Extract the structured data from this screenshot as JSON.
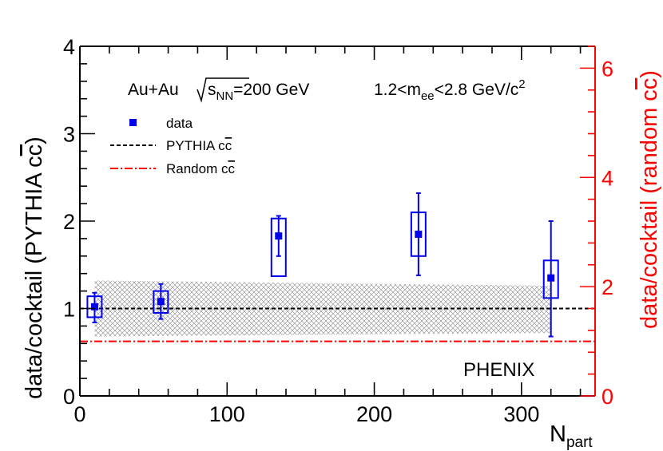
{
  "chart_data": {
    "type": "scatter",
    "title": "",
    "xlabel": "N",
    "xlabel_sub": "part",
    "ylabel": "data/cocktail (PYTHIA c",
    "ylabel_cc": "c",
    "ylabel_close": ")",
    "ylabel_right": "data/cocktail (random c",
    "ylabel_right_cc": "c",
    "ylabel_right_close": ")",
    "xlim": [
      0,
      350
    ],
    "ylim": [
      0,
      4
    ],
    "ylim_right": [
      0,
      6.4
    ],
    "x_ticks": [
      0,
      100,
      200,
      300
    ],
    "x_tick_labels": [
      "0",
      "100",
      "200",
      "300"
    ],
    "y_ticks": [
      0,
      1,
      2,
      3,
      4
    ],
    "y_tick_labels": [
      "0",
      "1",
      "2",
      "3",
      "4"
    ],
    "y_right_ticks": [
      0,
      2,
      4,
      6
    ],
    "y_right_tick_labels": [
      "0",
      "2",
      "4",
      "6"
    ],
    "series": [
      {
        "name": "data",
        "color": "#0000ee",
        "x": [
          10,
          55,
          135,
          230,
          320
        ],
        "y": [
          1.02,
          1.08,
          1.83,
          1.85,
          1.35
        ],
        "stat_err_low": [
          0.84,
          0.88,
          1.6,
          1.38,
          0.68
        ],
        "stat_err_high": [
          1.18,
          1.28,
          2.06,
          2.32,
          2.0
        ],
        "sys_box_low": [
          0.9,
          0.95,
          1.37,
          1.6,
          1.12
        ],
        "sys_box_high": [
          1.14,
          1.2,
          2.03,
          2.1,
          1.55
        ]
      }
    ],
    "pythia_line": {
      "name": "PYTHIA c",
      "name_cc": "c",
      "y": 1.0,
      "color": "#000000"
    },
    "random_line": {
      "name": "Random c",
      "name_cc": "c",
      "y": 0.625,
      "color": "#ff0000"
    },
    "band": {
      "x_range": [
        10,
        320
      ],
      "y_low": [
        0.68,
        0.72
      ],
      "y_high": [
        1.32,
        1.26
      ]
    },
    "annotations": {
      "collision": "Au+Au ",
      "sqrt_s": "s",
      "sqrt_s_sub": "NN",
      "energy": "=200 GeV",
      "mass_range_prefix": "1.2<m",
      "mass_range_sub": "ee",
      "mass_range_suffix": "<2.8 GeV/c",
      "mass_range_sup": "2",
      "experiment": "PHENIX"
    },
    "legend_placement": "top-left",
    "axis_color_right": "#ff0000"
  }
}
